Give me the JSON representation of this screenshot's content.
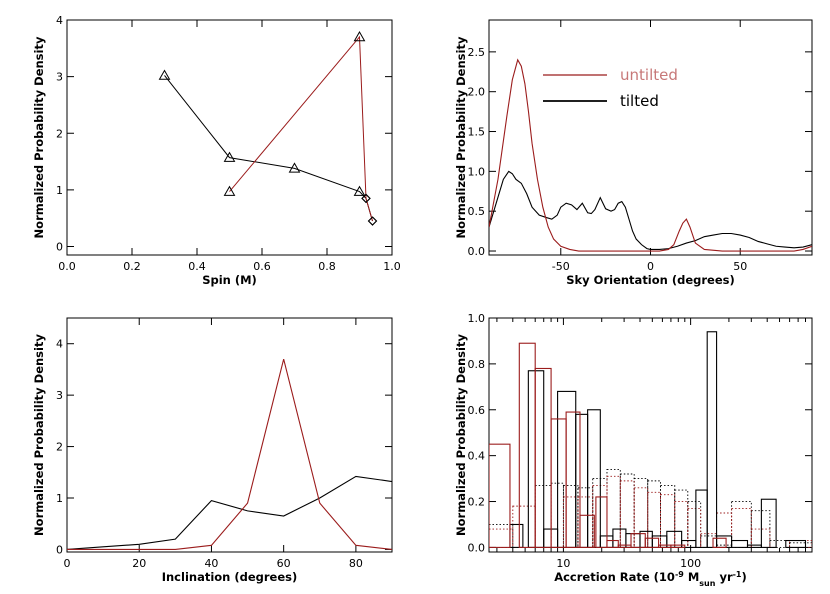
{
  "colors": {
    "untilted": "#9b1c1c",
    "tilted": "#000000",
    "legend_untilted_text": "#c77878"
  },
  "legend": {
    "untilted": "untilted",
    "tilted": "tilted"
  },
  "chart_data": [
    {
      "type": "line",
      "id": "spin",
      "xlabel": "Spin (M)",
      "ylabel": "Normalized Probability Density",
      "xlim": [
        0.0,
        1.0
      ],
      "ylim": [
        -0.15,
        4.0
      ],
      "xticks": [
        0.0,
        0.2,
        0.4,
        0.6,
        0.8,
        1.0
      ],
      "xtick_labels": [
        "0.0",
        "0.2",
        "0.4",
        "0.6",
        "0.8",
        "1.0"
      ],
      "yticks": [
        0,
        1,
        2,
        3,
        4
      ],
      "ytick_labels": [
        "0",
        "1",
        "2",
        "3",
        "4"
      ],
      "series": [
        {
          "name": "tilted",
          "marker": "triangle",
          "points": [
            [
              0.3,
              3.02
            ],
            [
              0.5,
              1.57
            ],
            [
              0.7,
              1.38
            ],
            [
              0.9,
              0.97
            ],
            [
              0.92,
              0.85
            ],
            [
              0.94,
              0.45
            ]
          ],
          "marker_symbols": [
            "triangle",
            "triangle",
            "triangle",
            "triangle",
            "diamond",
            "diamond"
          ]
        },
        {
          "name": "untilted",
          "marker": "triangle",
          "points": [
            [
              0.5,
              0.97
            ],
            [
              0.9,
              3.7
            ],
            [
              0.92,
              0.85
            ],
            [
              0.94,
              0.45
            ]
          ],
          "marker_symbols": [
            "triangle",
            "triangle",
            "diamond",
            "diamond"
          ]
        }
      ]
    },
    {
      "type": "line",
      "id": "sky",
      "xlabel": "Sky Orientation (degrees)",
      "ylabel": "Normalized Probability Density",
      "xlim": [
        -90,
        90
      ],
      "ylim": [
        -0.05,
        2.9
      ],
      "xticks": [
        -50,
        0,
        50
      ],
      "xtick_labels": [
        "-50",
        "0",
        "50"
      ],
      "yticks": [
        0.0,
        0.5,
        1.0,
        1.5,
        2.0,
        2.5
      ],
      "ytick_labels": [
        "0.0",
        "0.5",
        "1.0",
        "1.5",
        "2.0",
        "2.5"
      ],
      "series": [
        {
          "name": "untilted",
          "x": [
            -90,
            -85,
            -80,
            -77,
            -74,
            -72,
            -70,
            -68,
            -66,
            -63,
            -60,
            -57,
            -54,
            -50,
            -45,
            -40,
            -35,
            -30,
            -20,
            -10,
            0,
            5,
            10,
            13,
            16,
            18,
            20,
            22,
            25,
            30,
            40,
            50,
            60,
            70,
            80,
            85,
            90
          ],
          "y": [
            0.3,
            0.9,
            1.7,
            2.15,
            2.4,
            2.32,
            2.1,
            1.75,
            1.35,
            0.9,
            0.55,
            0.3,
            0.15,
            0.06,
            0.02,
            0.0,
            0.0,
            0.0,
            0.0,
            0.0,
            0.0,
            0.0,
            0.02,
            0.08,
            0.25,
            0.35,
            0.4,
            0.3,
            0.1,
            0.02,
            0.0,
            0.0,
            0.0,
            0.0,
            0.0,
            0.02,
            0.06
          ]
        },
        {
          "name": "tilted",
          "x": [
            -90,
            -86,
            -82,
            -79,
            -77,
            -75,
            -72,
            -69,
            -66,
            -62,
            -58,
            -55,
            -52,
            -50,
            -47,
            -44,
            -41,
            -38,
            -35,
            -33,
            -31,
            -28,
            -25,
            -22,
            -20,
            -18,
            -16,
            -14,
            -12,
            -10,
            -8,
            -5,
            -2,
            0,
            5,
            10,
            15,
            20,
            25,
            30,
            35,
            40,
            45,
            50,
            55,
            60,
            65,
            70,
            75,
            80,
            85,
            90
          ],
          "y": [
            0.3,
            0.6,
            0.9,
            1.0,
            0.97,
            0.9,
            0.85,
            0.72,
            0.55,
            0.45,
            0.42,
            0.4,
            0.45,
            0.55,
            0.6,
            0.58,
            0.52,
            0.6,
            0.48,
            0.47,
            0.52,
            0.67,
            0.53,
            0.5,
            0.52,
            0.6,
            0.62,
            0.55,
            0.4,
            0.25,
            0.15,
            0.08,
            0.03,
            0.02,
            0.02,
            0.03,
            0.06,
            0.1,
            0.13,
            0.18,
            0.2,
            0.22,
            0.22,
            0.2,
            0.17,
            0.12,
            0.09,
            0.06,
            0.05,
            0.04,
            0.05,
            0.08
          ]
        }
      ]
    },
    {
      "type": "line",
      "id": "inclination",
      "xlabel": "Inclination (degrees)",
      "ylabel": "Normalized Probability Density",
      "xlim": [
        0,
        90
      ],
      "ylim": [
        -0.05,
        4.5
      ],
      "xticks": [
        0,
        20,
        40,
        60,
        80
      ],
      "xtick_labels": [
        "0",
        "20",
        "40",
        "60",
        "80"
      ],
      "yticks": [
        0,
        1,
        2,
        3,
        4
      ],
      "ytick_labels": [
        "0",
        "1",
        "2",
        "3",
        "4"
      ],
      "series": [
        {
          "name": "untilted",
          "x": [
            0,
            10,
            20,
            30,
            40,
            50,
            60,
            70,
            80,
            90
          ],
          "y": [
            0.0,
            0.0,
            0.0,
            0.0,
            0.08,
            0.9,
            3.7,
            0.9,
            0.08,
            0.0
          ]
        },
        {
          "name": "tilted",
          "x": [
            0,
            10,
            20,
            30,
            40,
            50,
            60,
            70,
            80,
            90
          ],
          "y": [
            0.0,
            0.05,
            0.1,
            0.2,
            0.95,
            0.75,
            0.65,
            1.0,
            1.42,
            1.32
          ]
        }
      ]
    },
    {
      "type": "bar",
      "id": "accretion",
      "xlabel": "Accretion Rate (10",
      "xlabel_sup1": "-9",
      "xlabel_mid": " M",
      "xlabel_sub": "sun",
      "xlabel_mid2": " yr",
      "xlabel_sup2": "-1",
      "xlabel_end": ")",
      "ylabel": "Normalized Probability Density",
      "xscale": "log",
      "xlim": [
        2.6,
        900
      ],
      "ylim": [
        -0.02,
        1.0
      ],
      "xticks": [
        10,
        100
      ],
      "xtick_labels": [
        "10",
        "100"
      ],
      "yticks": [
        0.0,
        0.2,
        0.4,
        0.6,
        0.8,
        1.0
      ],
      "ytick_labels": [
        "0.0",
        "0.2",
        "0.4",
        "0.6",
        "0.8",
        "1.0"
      ],
      "series": [
        {
          "name": "untilted",
          "style": "solid",
          "bins": [
            [
              2.6,
              3.8,
              0.45
            ],
            [
              4.5,
              6.0,
              0.89
            ],
            [
              6.0,
              8.0,
              0.78
            ],
            [
              8.0,
              10.5,
              0.56
            ],
            [
              10.5,
              13.5,
              0.59
            ],
            [
              13.5,
              17.5,
              0.14
            ],
            [
              18.0,
              22.0,
              0.22
            ],
            [
              22.0,
              27.0,
              0.03
            ],
            [
              27.0,
              34.0,
              0.01
            ],
            [
              34.0,
              44.0,
              0.06
            ],
            [
              44.0,
              56.0,
              0.04
            ],
            [
              56.0,
              70.0,
              0.01
            ],
            [
              70.0,
              90.0,
              0.01
            ],
            [
              110.0,
              150.0,
              0.0
            ],
            [
              150.0,
              190.0,
              0.04
            ],
            [
              190.0,
              240.0,
              0.0
            ],
            [
              240.0,
              320.0,
              0.0
            ]
          ]
        },
        {
          "name": "tilted",
          "style": "solid",
          "bins": [
            [
              3.8,
              4.8,
              0.1
            ],
            [
              5.3,
              7.0,
              0.77
            ],
            [
              7.0,
              9.0,
              0.08
            ],
            [
              9.0,
              12.5,
              0.68
            ],
            [
              12.5,
              15.5,
              0.58
            ],
            [
              15.5,
              19.5,
              0.6
            ],
            [
              19.5,
              24.5,
              0.05
            ],
            [
              24.5,
              31.0,
              0.08
            ],
            [
              31.0,
              40.0,
              0.06
            ],
            [
              40.0,
              50.0,
              0.07
            ],
            [
              50.0,
              65.0,
              0.05
            ],
            [
              65.0,
              85.0,
              0.07
            ],
            [
              85.0,
              110.0,
              0.03
            ],
            [
              110.0,
              135.0,
              0.25
            ],
            [
              135.0,
              160.0,
              0.94
            ],
            [
              160.0,
              210.0,
              0.05
            ],
            [
              210.0,
              280.0,
              0.03
            ],
            [
              280.0,
              360.0,
              0.01
            ],
            [
              360.0,
              470.0,
              0.21
            ],
            [
              560.0,
              800.0,
              0.03
            ]
          ]
        },
        {
          "name": "tilted-dotted",
          "style": "dotted",
          "bins": [
            [
              2.6,
              4.0,
              0.1
            ],
            [
              6.0,
              8.0,
              0.27
            ],
            [
              8.0,
              10.0,
              0.28
            ],
            [
              10.0,
              13.0,
              0.27
            ],
            [
              13.0,
              17.0,
              0.26
            ],
            [
              17.0,
              22.0,
              0.3
            ],
            [
              22.0,
              28.0,
              0.34
            ],
            [
              28.0,
              36.0,
              0.32
            ],
            [
              36.0,
              46.0,
              0.3
            ],
            [
              46.0,
              58.0,
              0.29
            ],
            [
              58.0,
              75.0,
              0.27
            ],
            [
              75.0,
              95.0,
              0.25
            ],
            [
              95.0,
              120.0,
              0.2
            ],
            [
              120.0,
              160.0,
              0.05
            ],
            [
              160.0,
              210.0,
              0.01
            ],
            [
              210.0,
              300.0,
              0.2
            ],
            [
              300.0,
              420.0,
              0.16
            ],
            [
              420.0,
              600.0,
              0.03
            ],
            [
              600.0,
              900.0,
              0.02
            ]
          ]
        },
        {
          "name": "untilted-dotted",
          "style": "dotted",
          "bins": [
            [
              2.6,
              4.0,
              0.08
            ],
            [
              4.0,
              6.0,
              0.18
            ],
            [
              10.0,
              13.0,
              0.22
            ],
            [
              13.0,
              17.0,
              0.22
            ],
            [
              17.0,
              22.0,
              0.27
            ],
            [
              22.0,
              28.0,
              0.31
            ],
            [
              28.0,
              36.0,
              0.29
            ],
            [
              36.0,
              46.0,
              0.26
            ],
            [
              46.0,
              58.0,
              0.24
            ],
            [
              58.0,
              75.0,
              0.23
            ],
            [
              75.0,
              95.0,
              0.2
            ],
            [
              95.0,
              120.0,
              0.17
            ],
            [
              120.0,
              160.0,
              0.06
            ],
            [
              160.0,
              210.0,
              0.15
            ],
            [
              210.0,
              300.0,
              0.17
            ],
            [
              300.0,
              420.0,
              0.08
            ],
            [
              600.0,
              900.0,
              0.03
            ]
          ]
        }
      ]
    }
  ]
}
